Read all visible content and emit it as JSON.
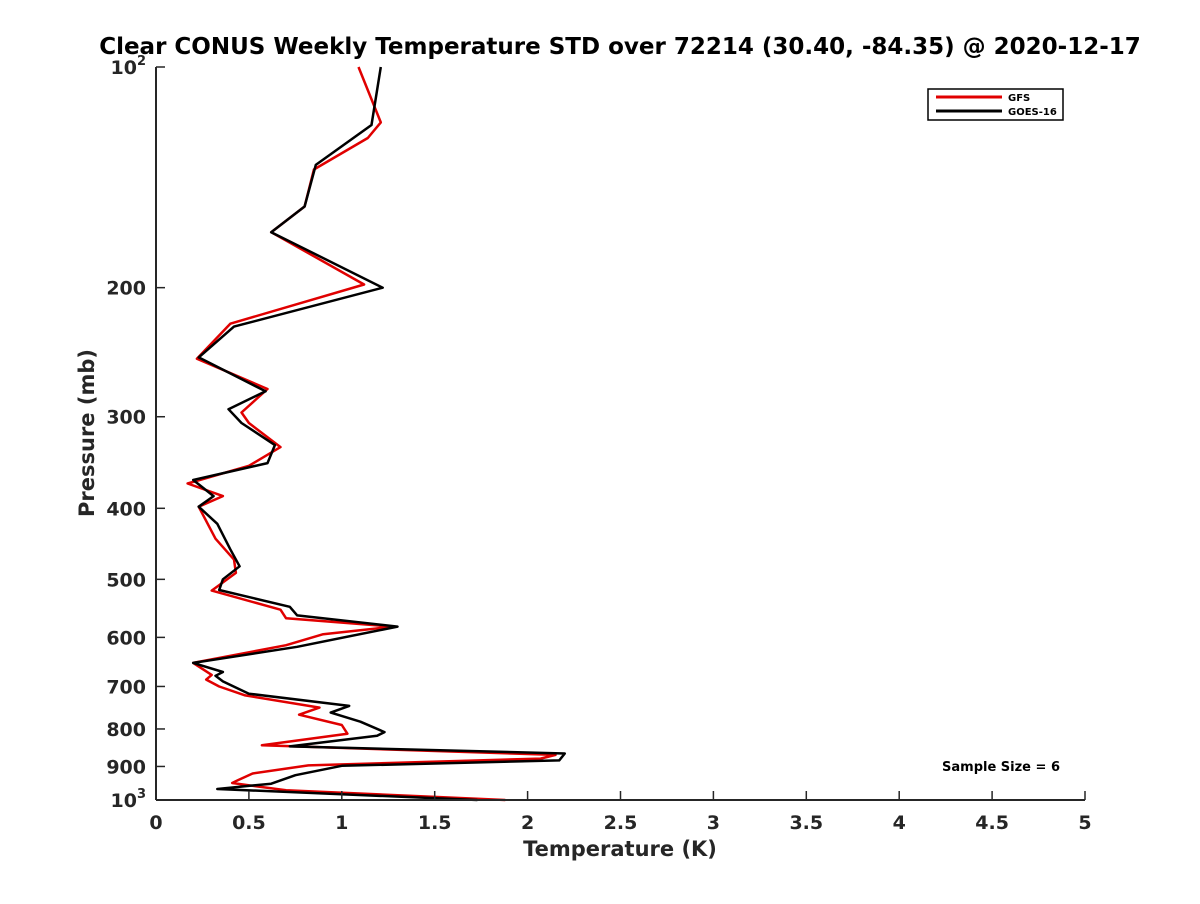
{
  "chart_data": {
    "type": "line",
    "title": "Clear CONUS Weekly Temperature STD over 72214 (30.40, -84.35) @ 2020-12-17",
    "xlabel": "Temperature (K)",
    "ylabel": "Pressure (mb)",
    "xlim": [
      0,
      5
    ],
    "ylim": [
      100,
      1000
    ],
    "y_scale": "log",
    "y_reversed": true,
    "grid": false,
    "legend_position": "top-right",
    "x_ticks": [
      0,
      0.5,
      1,
      1.5,
      2,
      2.5,
      3,
      3.5,
      4,
      4.5,
      5
    ],
    "x_tick_labels": [
      "0",
      "0.5",
      "1",
      "1.5",
      "2",
      "2.5",
      "3",
      "3.5",
      "4",
      "4.5",
      "5"
    ],
    "y_ticks": [
      {
        "value": 100,
        "label": "10",
        "sup": "2"
      },
      {
        "value": 200,
        "label": "200",
        "sup": ""
      },
      {
        "value": 300,
        "label": "300",
        "sup": ""
      },
      {
        "value": 400,
        "label": "400",
        "sup": ""
      },
      {
        "value": 500,
        "label": "500",
        "sup": ""
      },
      {
        "value": 600,
        "label": "600",
        "sup": ""
      },
      {
        "value": 700,
        "label": "700",
        "sup": ""
      },
      {
        "value": 800,
        "label": "800",
        "sup": ""
      },
      {
        "value": 900,
        "label": "900",
        "sup": ""
      },
      {
        "value": 1000,
        "label": "10",
        "sup": "3"
      }
    ],
    "series": [
      {
        "name": "GFS",
        "color": "#e00000",
        "points": [
          [
            1.09,
            100
          ],
          [
            1.21,
            119
          ],
          [
            1.14,
            125
          ],
          [
            0.85,
            138
          ],
          [
            0.8,
            155
          ],
          [
            0.62,
            168
          ],
          [
            1.12,
            198
          ],
          [
            0.4,
            224
          ],
          [
            0.22,
            250
          ],
          [
            0.6,
            275
          ],
          [
            0.46,
            296
          ],
          [
            0.5,
            306
          ],
          [
            0.67,
            330
          ],
          [
            0.5,
            350
          ],
          [
            0.17,
            370
          ],
          [
            0.36,
            385
          ],
          [
            0.23,
            398
          ],
          [
            0.32,
            440
          ],
          [
            0.42,
            470
          ],
          [
            0.43,
            490
          ],
          [
            0.3,
            518
          ],
          [
            0.67,
            550
          ],
          [
            0.7,
            565
          ],
          [
            1.28,
            580
          ],
          [
            0.9,
            594
          ],
          [
            0.7,
            615
          ],
          [
            0.2,
            650
          ],
          [
            0.3,
            675
          ],
          [
            0.27,
            685
          ],
          [
            0.34,
            700
          ],
          [
            0.48,
            720
          ],
          [
            0.88,
            748
          ],
          [
            0.77,
            765
          ],
          [
            1.0,
            790
          ],
          [
            1.03,
            812
          ],
          [
            0.57,
            842
          ],
          [
            2.15,
            868
          ],
          [
            2.07,
            878
          ],
          [
            0.82,
            897
          ],
          [
            0.52,
            920
          ],
          [
            0.44,
            940
          ],
          [
            0.41,
            948
          ],
          [
            0.7,
            970
          ],
          [
            1.88,
            1000
          ]
        ]
      },
      {
        "name": "GOES-16",
        "color": "#000000",
        "points": [
          [
            1.21,
            100
          ],
          [
            1.16,
            120
          ],
          [
            0.86,
            136
          ],
          [
            0.8,
            155
          ],
          [
            0.62,
            168
          ],
          [
            1.22,
            200
          ],
          [
            0.42,
            226
          ],
          [
            0.23,
            249
          ],
          [
            0.59,
            277
          ],
          [
            0.39,
            293
          ],
          [
            0.46,
            306
          ],
          [
            0.64,
            328
          ],
          [
            0.6,
            347
          ],
          [
            0.2,
            366
          ],
          [
            0.31,
            385
          ],
          [
            0.23,
            398
          ],
          [
            0.33,
            420
          ],
          [
            0.4,
            455
          ],
          [
            0.45,
            480
          ],
          [
            0.36,
            500
          ],
          [
            0.34,
            517
          ],
          [
            0.72,
            545
          ],
          [
            0.76,
            560
          ],
          [
            1.3,
            580
          ],
          [
            0.76,
            618
          ],
          [
            0.2,
            650
          ],
          [
            0.36,
            669
          ],
          [
            0.32,
            677
          ],
          [
            0.36,
            689
          ],
          [
            0.5,
            716
          ],
          [
            1.04,
            744
          ],
          [
            0.94,
            760
          ],
          [
            1.1,
            782
          ],
          [
            1.23,
            808
          ],
          [
            1.19,
            817
          ],
          [
            0.72,
            845
          ],
          [
            2.2,
            864
          ],
          [
            2.17,
            883
          ],
          [
            1.0,
            898
          ],
          [
            0.75,
            925
          ],
          [
            0.62,
            950
          ],
          [
            0.33,
            966
          ],
          [
            1.73,
            1000
          ]
        ]
      }
    ],
    "annotations": [
      "Sample Size = 6"
    ]
  }
}
